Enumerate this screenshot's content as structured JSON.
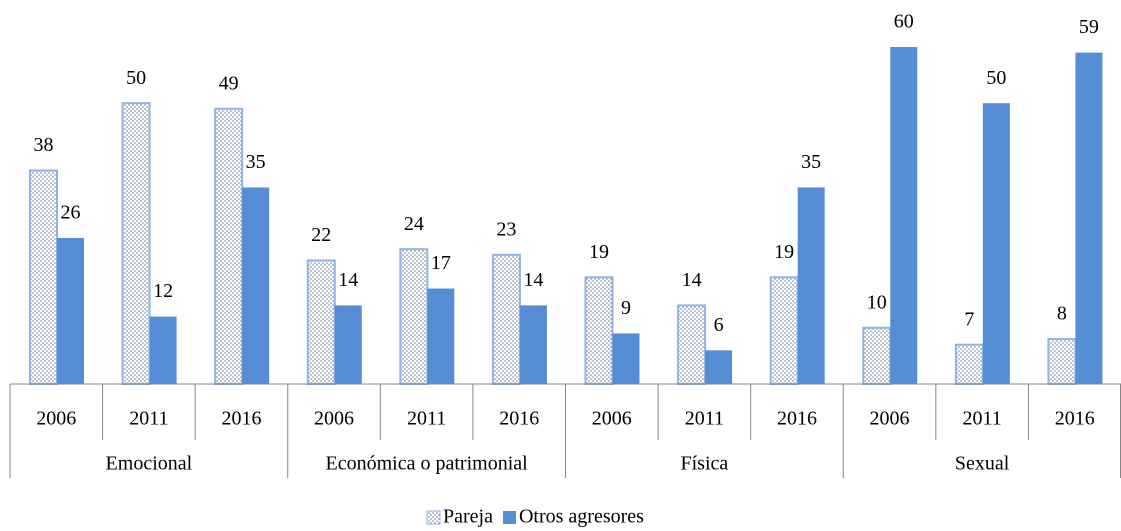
{
  "chart_data": {
    "type": "bar",
    "groups": [
      "Emocional",
      "Económica o patrimonial",
      "Física",
      "Sexual"
    ],
    "categories": [
      "2006",
      "2011",
      "2016",
      "2006",
      "2011",
      "2016",
      "2006",
      "2011",
      "2016",
      "2006",
      "2011",
      "2016"
    ],
    "series": [
      {
        "name": "Pareja",
        "color": "#8eb4e3",
        "values": [
          38,
          50,
          49,
          22,
          24,
          23,
          19,
          14,
          19,
          10,
          7,
          8
        ]
      },
      {
        "name": "Otros agresores",
        "color": "#558ed5",
        "values": [
          26,
          12,
          35,
          14,
          17,
          14,
          9,
          6,
          35,
          60,
          50,
          59
        ]
      }
    ]
  }
}
